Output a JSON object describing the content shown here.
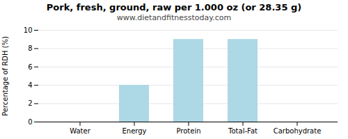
{
  "chart_data": {
    "type": "bar",
    "title": "Pork, fresh, ground, raw per 1.000 oz (or 28.35 g)",
    "subtitle": "www.dietandfitnesstoday.com",
    "categories": [
      "Water",
      "Energy",
      "Protein",
      "Total-Fat",
      "Carbohydrate"
    ],
    "values": [
      0,
      4,
      9,
      9,
      0
    ],
    "color": "#add8e6",
    "ylabel": "Percentage of RDH (%)",
    "ylim": [
      0,
      10
    ],
    "yticks": [
      0,
      2,
      4,
      6,
      8,
      10
    ],
    "grid": true
  }
}
